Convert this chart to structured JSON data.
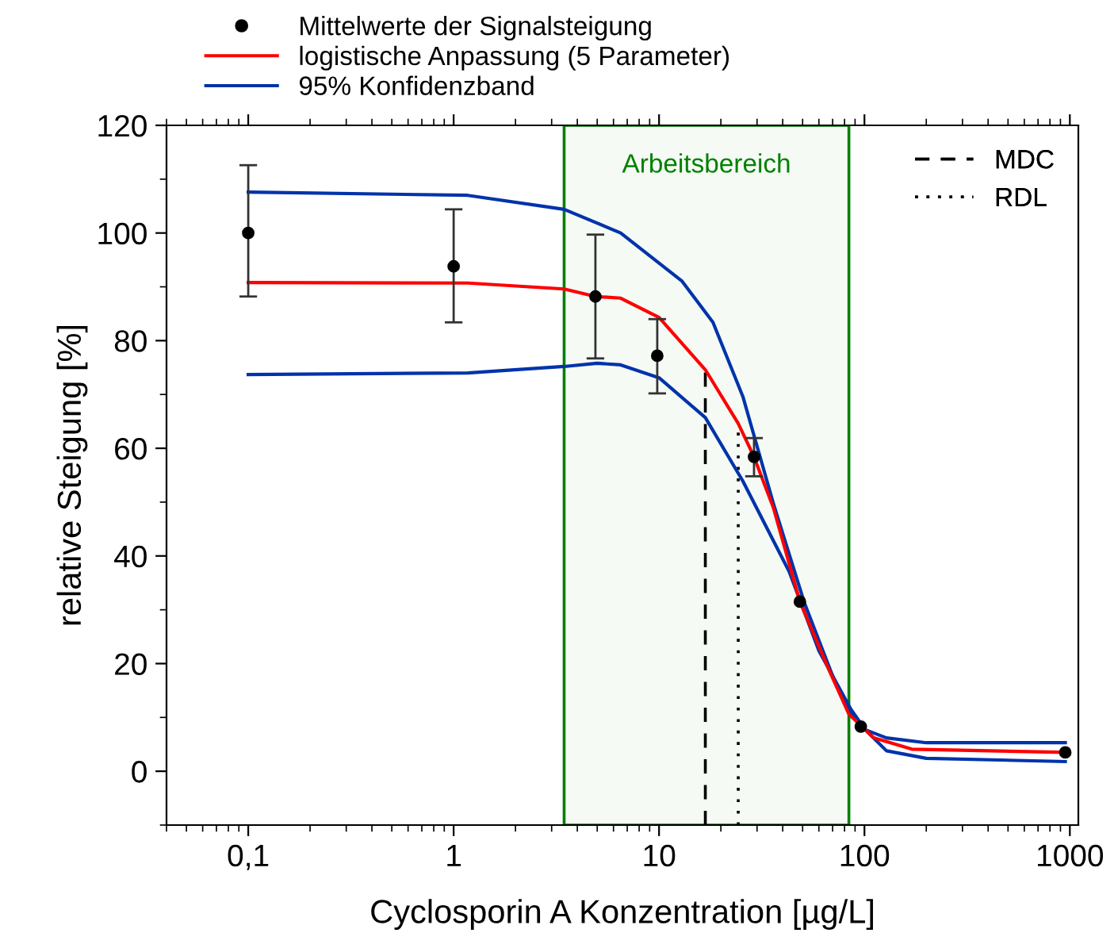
{
  "chart_data": {
    "type": "scatter",
    "xlabel": "Cyclosporin A Konzentration [µg/L]",
    "ylabel": "relative Steigung [%]",
    "log": "x",
    "xlim": [
      0.04,
      1100
    ],
    "xticks": [
      {
        "value": 0.1,
        "label": "0,1"
      },
      1,
      10,
      100,
      1000
    ],
    "ylim": [
      -10,
      120
    ],
    "yticks": [
      0,
      20,
      40,
      60,
      80,
      100,
      120
    ],
    "grid": false,
    "legend": "top",
    "series": [
      {
        "name": "Mittelwerte der Signalsteigung",
        "color": "#000000",
        "marker": "circle",
        "x": [
          0.1,
          1.0,
          4.9,
          9.8,
          29,
          48.5,
          96,
          950
        ],
        "values": [
          100,
          93.8,
          88.2,
          77.2,
          58.4,
          31.5,
          8.3,
          3.5
        ],
        "errors": [
          [
            88.2,
            112.6
          ],
          [
            83.4,
            104.4
          ],
          [
            76.7,
            99.7
          ],
          [
            70.2,
            84.0
          ],
          [
            54.8,
            61.9
          ],
          null,
          null,
          null
        ]
      },
      {
        "name": "logistische Anpassung (5 Parameter)",
        "type": "line",
        "color": "#ff0000",
        "x": [
          0.1,
          1.17,
          3.45,
          4.9,
          6.5,
          10,
          16.8,
          24.3,
          29,
          36,
          48.5,
          66,
          84,
          111,
          170,
          950
        ],
        "values": [
          90.8,
          90.7,
          89.6,
          88.2,
          87.9,
          84.3,
          74.6,
          64.6,
          58.4,
          49,
          31.5,
          19.5,
          10.6,
          6.2,
          4.1,
          3.5
        ]
      },
      {
        "name": "95% Konfidenzband",
        "type": "line",
        "color": "#0033aa",
        "x": [
          0.1,
          1.17,
          3.45,
          6.5,
          12.9,
          18.3,
          25.6,
          36,
          51,
          72,
          86,
          101,
          128,
          200,
          950
        ],
        "values": [
          107.6,
          107,
          104.4,
          100,
          91.1,
          83.4,
          69.6,
          49.8,
          31.3,
          16.5,
          10.6,
          7.7,
          6.2,
          5.3,
          5.3
        ]
      },
      {
        "type": "line",
        "color": "#0033aa",
        "x": [
          0.1,
          1.17,
          3.45,
          5.0,
          6.5,
          10,
          16.8,
          25.6,
          43,
          60,
          86,
          101,
          128,
          200,
          950
        ],
        "values": [
          73.7,
          74,
          75.2,
          75.8,
          75.5,
          73.1,
          65.7,
          53.9,
          37.1,
          22.4,
          11.5,
          7.7,
          3.8,
          2.4,
          1.8
        ]
      }
    ],
    "ref_lines": [
      {
        "axis": "x",
        "value": 16.8,
        "label": "MDC",
        "line_style": "dashed",
        "color": "#000000"
      },
      {
        "axis": "x",
        "value": 24.3,
        "label": "RDL",
        "line_style": "dotted",
        "color": "#000000"
      }
    ],
    "bands": [
      {
        "axis": "x",
        "from": 3.45,
        "to": 84,
        "label": "Arbeitsbereich",
        "color": "#008000"
      }
    ]
  }
}
